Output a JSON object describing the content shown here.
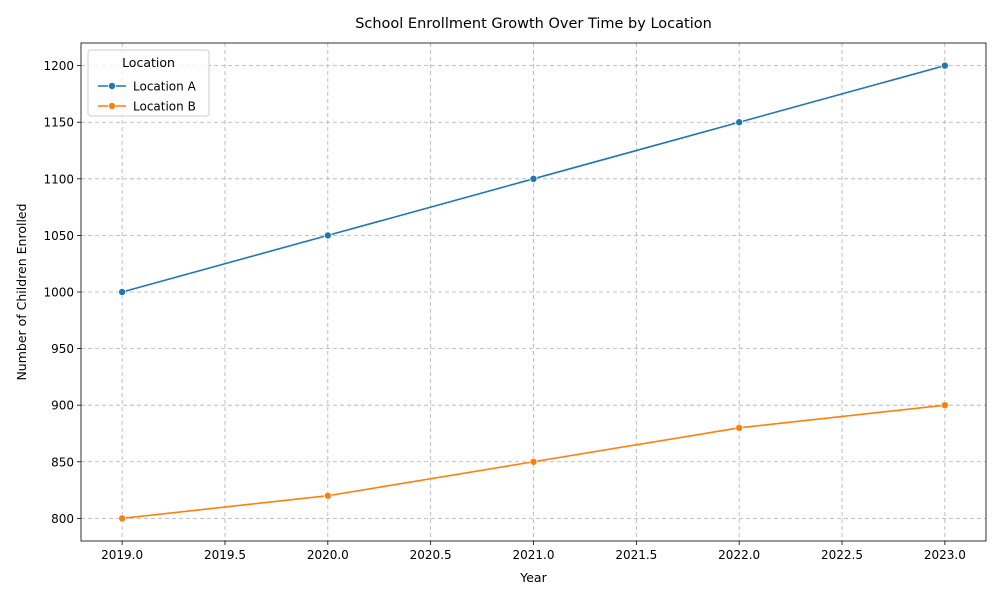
{
  "chart_data": {
    "type": "line",
    "title": "School Enrollment Growth Over Time by Location",
    "xlabel": "Year",
    "ylabel": "Number of Children Enrolled",
    "x": [
      2019,
      2020,
      2021,
      2022,
      2023
    ],
    "series": [
      {
        "name": "Location A",
        "color": "#1f77b4",
        "values": [
          1000,
          1050,
          1100,
          1150,
          1200
        ]
      },
      {
        "name": "Location B",
        "color": "#ff7f0e",
        "values": [
          800,
          820,
          850,
          880,
          900
        ]
      }
    ],
    "xlim": [
      2018.8,
      2023.2
    ],
    "ylim": [
      780,
      1220
    ],
    "xticks": [
      "2019.0",
      "2019.5",
      "2020.0",
      "2020.5",
      "2021.0",
      "2021.5",
      "2022.0",
      "2022.5",
      "2023.0"
    ],
    "xtick_values": [
      2019.0,
      2019.5,
      2020.0,
      2020.5,
      2021.0,
      2021.5,
      2022.0,
      2022.5,
      2023.0
    ],
    "yticks": [
      "800",
      "850",
      "900",
      "950",
      "1000",
      "1050",
      "1100",
      "1150",
      "1200"
    ],
    "ytick_values": [
      800,
      850,
      900,
      950,
      1000,
      1050,
      1100,
      1150,
      1200
    ],
    "grid": true,
    "legend": {
      "title": "Location",
      "placement": "top-left"
    },
    "marker": "circle"
  }
}
